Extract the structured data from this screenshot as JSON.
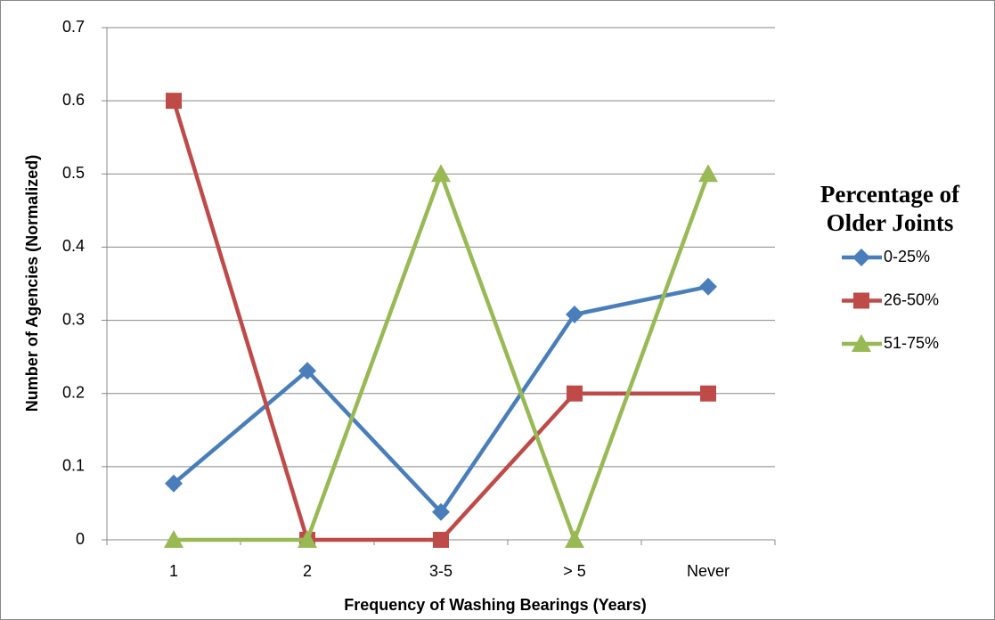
{
  "chart_data": {
    "type": "line",
    "x_label": "Frequency of Washing Bearings (Years)",
    "y_label": "Number of Agencies (Normalized)",
    "legend_title": "Percentage of Older Joints",
    "categories": [
      "1",
      "2",
      "3-5",
      "> 5",
      "Never"
    ],
    "series": [
      {
        "name": "0-25%",
        "color": "#4a7ebb",
        "marker": "diamond",
        "values": [
          0.077,
          0.231,
          0.038,
          0.308,
          0.346
        ]
      },
      {
        "name": "26-50%",
        "color": "#be4b48",
        "marker": "square",
        "values": [
          0.6,
          0,
          0,
          0.2,
          0.2
        ]
      },
      {
        "name": "51-75%",
        "color": "#98b954",
        "marker": "triangle",
        "values": [
          0,
          0,
          0.5,
          0,
          0.5
        ]
      }
    ],
    "ylim": [
      0,
      0.7
    ],
    "yticks": [
      0,
      0.1,
      0.2,
      0.3,
      0.4,
      0.5,
      0.6,
      0.7
    ],
    "grid": true,
    "legend": "right"
  }
}
